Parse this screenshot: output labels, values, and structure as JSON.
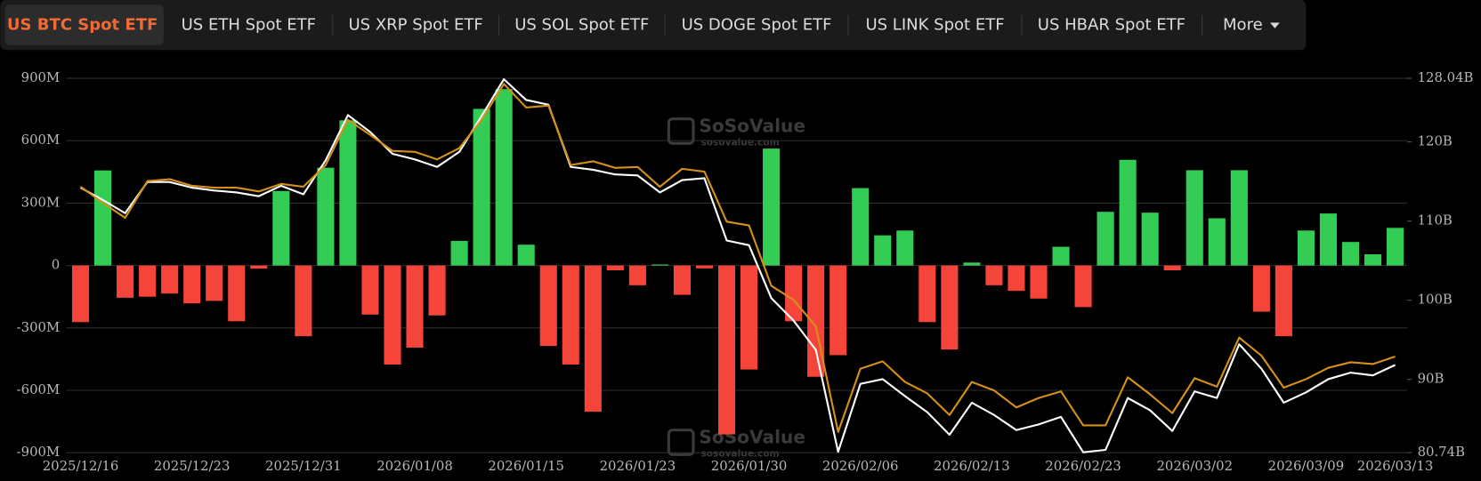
{
  "tabs": [
    "US BTC Spot ETF",
    "US ETH Spot ETF",
    "US XRP Spot ETF",
    "US SOL Spot ETF",
    "US DOGE Spot ETF",
    "US LINK Spot ETF",
    "US HBAR Spot ETF"
  ],
  "active_tab": 0,
  "more": "More",
  "chart_data": {
    "type": "bar",
    "watermark": "SoSoValue",
    "watermark_url": "sosovalue.com",
    "categories": [
      "2025/12/16",
      null,
      null,
      null,
      null,
      "2025/12/23",
      null,
      null,
      null,
      null,
      "2025/12/31",
      null,
      null,
      null,
      null,
      "2026/01/08",
      null,
      null,
      null,
      null,
      "2026/01/15",
      null,
      null,
      null,
      null,
      "2026/01/23",
      null,
      null,
      null,
      null,
      "2026/01/30",
      null,
      null,
      null,
      null,
      "2026/02/06",
      null,
      null,
      null,
      null,
      "2026/02/13",
      null,
      null,
      null,
      null,
      "2026/02/23",
      null,
      null,
      null,
      null,
      "2026/03/02",
      null,
      null,
      null,
      null,
      "2026/03/09",
      null,
      null,
      null,
      "2026/03/13"
    ],
    "ylim": [
      -900,
      900
    ],
    "yticks": [
      {
        "value": -900,
        "label": "-900M"
      },
      {
        "value": -600,
        "label": "-600M"
      },
      {
        "value": -300,
        "label": "-300M"
      },
      0,
      {
        "value": 300,
        "label": "300M"
      },
      {
        "value": 600,
        "label": "600M"
      },
      {
        "value": 900,
        "label": "900M"
      }
    ],
    "y2lim": [
      80.74,
      128.04
    ],
    "y2ticks": [
      {
        "value": 80.74,
        "label": "80.74B"
      },
      {
        "value": 90,
        "label": "90B"
      },
      {
        "value": 100,
        "label": "100B"
      },
      {
        "value": 110,
        "label": "110B"
      },
      {
        "value": 120,
        "label": "120B"
      },
      {
        "value": 128.04,
        "label": "128.04B"
      }
    ],
    "grid": true,
    "series": [
      {
        "type": "bar",
        "positive_color": "#33cc55",
        "negative_color": "#f5443a",
        "values": [
          -272,
          457,
          -155,
          -150,
          -135,
          -182,
          -170,
          -268,
          -15,
          358,
          -340,
          470,
          698,
          -236,
          -476,
          -395,
          -240,
          118,
          753,
          848,
          100,
          -387,
          -476,
          -703,
          -23,
          -95,
          5,
          -141,
          -14,
          -812,
          -500,
          562,
          -268,
          -535,
          -431,
          372,
          145,
          168,
          -272,
          -404,
          14,
          -95,
          -122,
          -159,
          90,
          -200,
          258,
          508,
          254,
          -23,
          458,
          227,
          458,
          -222,
          -340,
          168,
          250,
          113,
          54,
          181
        ]
      },
      {
        "type": "line",
        "axis": "y2",
        "color": "#ffffff",
        "values": [
          114.22,
          112.67,
          111.0,
          114.93,
          114.93,
          114.22,
          113.86,
          113.62,
          113.15,
          114.46,
          113.38,
          117.67,
          123.39,
          121.25,
          118.5,
          117.79,
          116.84,
          118.75,
          123.27,
          127.92,
          125.3,
          124.7,
          116.84,
          116.48,
          115.89,
          115.77,
          113.62,
          115.17,
          115.41,
          107.55,
          106.95,
          100.28,
          97.42,
          93.73,
          80.86,
          89.44,
          90.03,
          87.89,
          85.86,
          83.0,
          87.05,
          85.5,
          83.6,
          84.31,
          85.27,
          80.8,
          81.1,
          87.65,
          86.1,
          83.48,
          88.48,
          87.65,
          94.44,
          91.34,
          87.05,
          88.36,
          90.03,
          90.86,
          90.51,
          91.82
        ]
      },
      {
        "type": "line",
        "axis": "y2",
        "color": "#d4901a",
        "values": [
          114.34,
          112.31,
          110.41,
          115.05,
          115.29,
          114.46,
          114.22,
          114.22,
          113.74,
          114.7,
          114.34,
          117.08,
          122.8,
          120.89,
          118.87,
          118.75,
          117.79,
          119.22,
          122.8,
          127.32,
          124.35,
          124.58,
          117.08,
          117.56,
          116.72,
          116.84,
          114.34,
          116.6,
          116.24,
          109.93,
          109.45,
          101.83,
          100.04,
          96.7,
          83.36,
          91.34,
          92.29,
          89.67,
          88.24,
          85.5,
          89.67,
          88.6,
          86.46,
          87.65,
          88.48,
          84.19,
          84.19,
          90.27,
          88.12,
          85.74,
          90.15,
          89.08,
          95.27,
          93.0,
          88.96,
          90.03,
          91.46,
          92.17,
          91.94,
          92.89
        ]
      }
    ]
  }
}
